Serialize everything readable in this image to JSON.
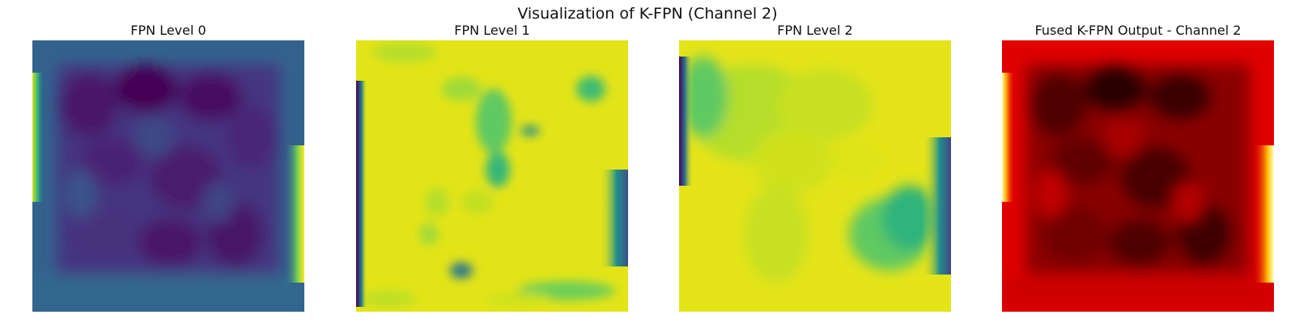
{
  "figure": {
    "title": "Visualization of K-FPN (Channel 2)"
  },
  "panels": [
    {
      "title": "FPN Level 0",
      "colormap": "viridis",
      "description_colors": {
        "low": "#440154",
        "mid": "#21908d",
        "high": "#fde725"
      }
    },
    {
      "title": "FPN Level 1",
      "colormap": "viridis",
      "description_colors": {
        "low": "#440154",
        "mid": "#21908d",
        "high": "#fde725"
      }
    },
    {
      "title": "FPN Level 2",
      "colormap": "viridis",
      "description_colors": {
        "low": "#440154",
        "mid": "#21908d",
        "high": "#fde725"
      }
    },
    {
      "title": "Fused K-FPN Output - Channel 2",
      "colormap": "hot",
      "description_colors": {
        "low": "#000000",
        "mid": "#ff0000",
        "high": "#ffffff"
      }
    }
  ]
}
